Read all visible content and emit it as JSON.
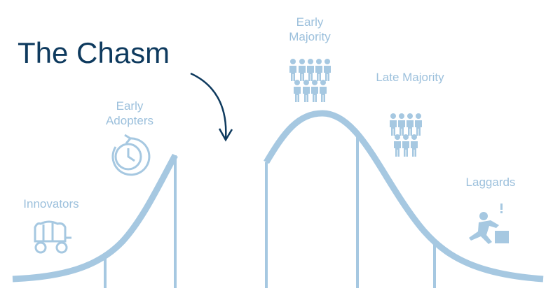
{
  "title": "The Chasm",
  "segments": [
    {
      "label": "Innovators",
      "icon": "covered-wagon-icon"
    },
    {
      "label": "Early Adopters",
      "icon": "clock-icon"
    },
    {
      "label": "Early Majority",
      "icon": "people-group-icon"
    },
    {
      "label": "Late Majority",
      "icon": "people-group-icon"
    },
    {
      "label": "Laggards",
      "icon": "kneeling-person-icon"
    }
  ],
  "colors": {
    "curve": "#a6c8e1",
    "title": "#0e3a5e",
    "label": "#9cc0dc"
  }
}
